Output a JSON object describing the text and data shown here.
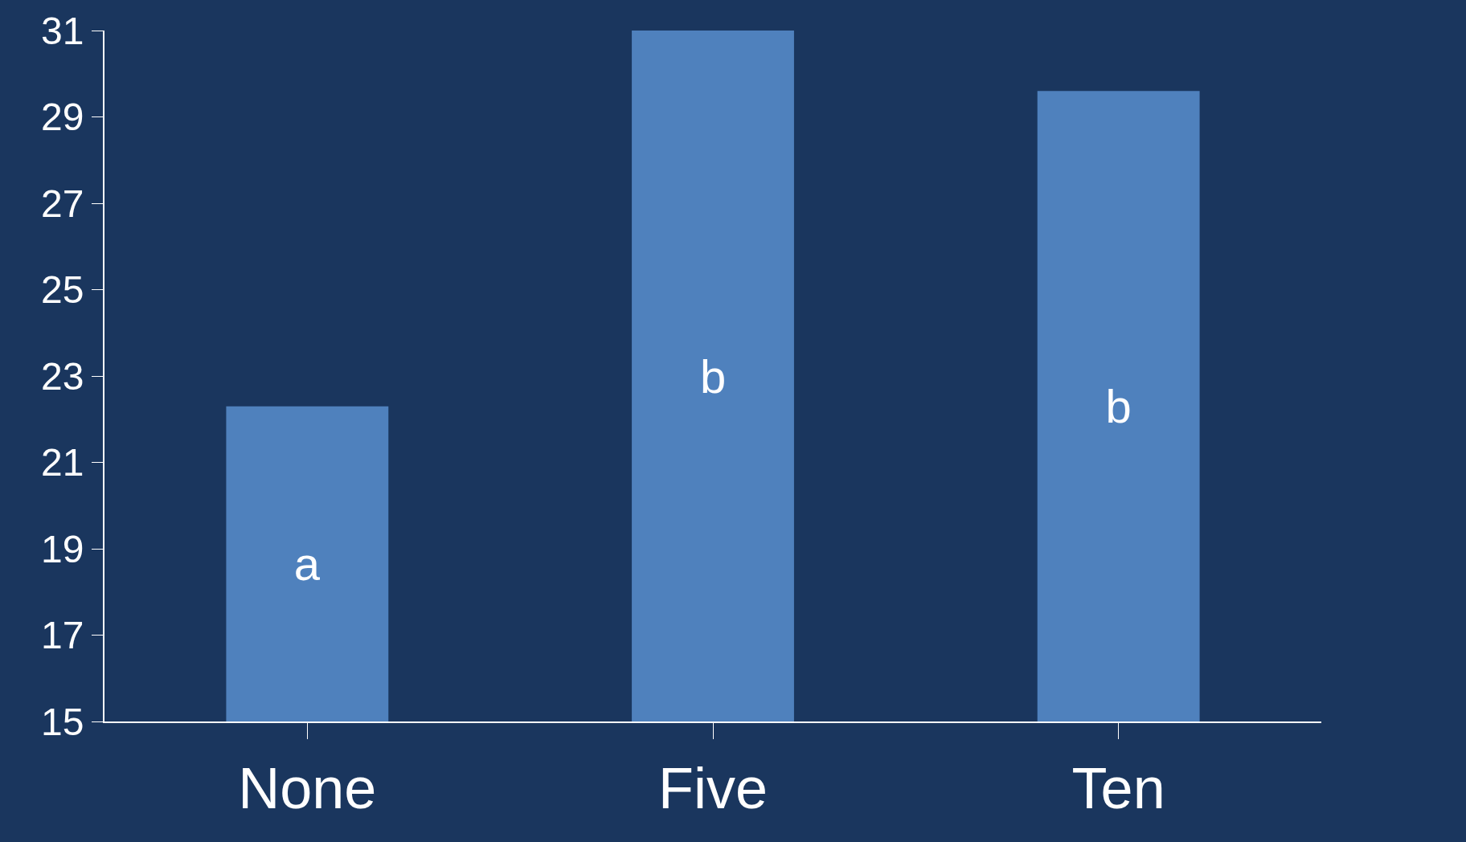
{
  "chart_data": {
    "type": "bar",
    "categories": [
      "None",
      "Five",
      "Ten"
    ],
    "values": [
      22.3,
      31,
      29.6
    ],
    "color": "#4f81bd",
    "ylim": [
      15,
      31
    ],
    "yticks": [
      15,
      17,
      19,
      21,
      23,
      25,
      27,
      29,
      31
    ],
    "value_labels": [
      "a",
      "b",
      "b"
    ],
    "grid": false
  }
}
